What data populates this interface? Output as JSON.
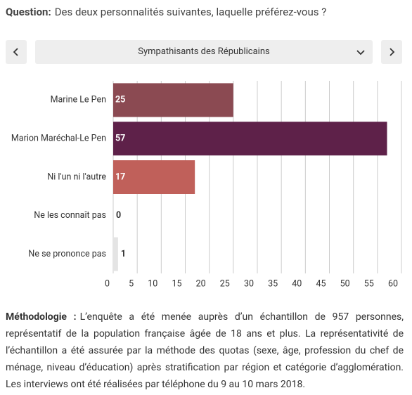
{
  "question": {
    "label": "Question:",
    "text": "Des deux personnalités suivantes, laquelle préférez-vous ?"
  },
  "selector": "Sympathisants des Républicains",
  "chart_data": {
    "type": "bar",
    "orientation": "horizontal",
    "categories": [
      "Marine Le Pen",
      "Marion Maréchal-Le Pen",
      "Ni l'un ni l'autre",
      "Ne les connaît pas",
      "Ne se prononce pas"
    ],
    "values": [
      25,
      57,
      17,
      0,
      1
    ],
    "colors": [
      "#8b4a52",
      "#5e2149",
      "#c0605a",
      "#cccccc",
      "#e4e4e4"
    ],
    "xlim": [
      0,
      60
    ],
    "xticks": [
      0,
      5,
      10,
      15,
      20,
      25,
      30,
      35,
      40,
      45,
      50,
      55,
      60
    ],
    "grid": true
  },
  "methodology": {
    "label": "Méthodologie :",
    "text": "L’enquête a été menée auprès d’un échantillon de 957 personnes, représentatif de la population française âgée de 18 ans et plus. La représentativité de l’échantillon a été assurée par la méthode des quotas (sexe, âge, profession du chef de ménage, niveau d’éducation) après stratification par région et catégorie d’agglomération. Les interviews ont été réalisées par téléphone du 9 au 10 mars 2018."
  }
}
